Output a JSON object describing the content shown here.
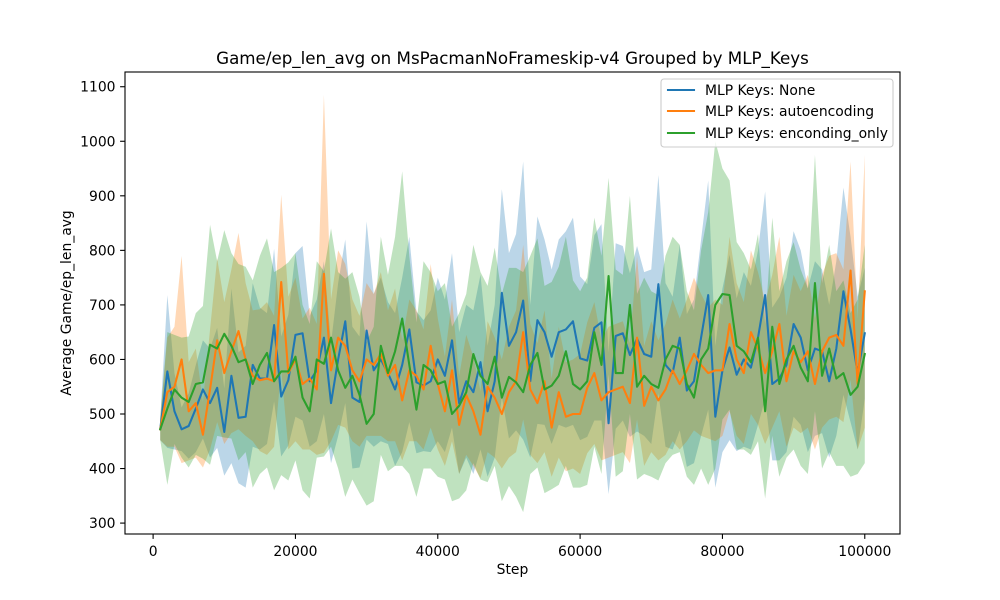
{
  "chart_data": {
    "type": "line",
    "title": "Game/ep_len_avg on MsPacmanNoFrameskip-v4 Grouped by MLP_Keys",
    "xlabel": "Step",
    "ylabel": "Average Game/ep_len_avg",
    "xlim": [
      -3950,
      104950
    ],
    "ylim": [
      280,
      1127
    ],
    "xticks": [
      0,
      20000,
      40000,
      60000,
      80000,
      100000
    ],
    "yticks": [
      300,
      400,
      500,
      600,
      700,
      800,
      900,
      1000,
      1100
    ],
    "grid": false,
    "legend": "upper right",
    "x": [
      1000,
      2000,
      3000,
      4000,
      5000,
      6000,
      7000,
      8000,
      9000,
      10000,
      11000,
      12000,
      13000,
      14000,
      15000,
      16000,
      17000,
      18000,
      19000,
      20000,
      21000,
      22000,
      23000,
      24000,
      25000,
      26000,
      27000,
      28000,
      29000,
      30000,
      31000,
      32000,
      33000,
      34000,
      35000,
      36000,
      37000,
      38000,
      39000,
      40000,
      41000,
      42000,
      43000,
      44000,
      45000,
      46000,
      47000,
      48000,
      49000,
      50000,
      51000,
      52000,
      53000,
      54000,
      55000,
      56000,
      57000,
      58000,
      59000,
      60000,
      61000,
      62000,
      63000,
      64000,
      65000,
      66000,
      67000,
      68000,
      69000,
      70000,
      71000,
      72000,
      73000,
      74000,
      75000,
      76000,
      77000,
      78000,
      79000,
      80000,
      81000,
      82000,
      83000,
      84000,
      85000,
      86000,
      87000,
      88000,
      89000,
      90000,
      91000,
      92000,
      93000,
      94000,
      95000,
      96000,
      97000,
      98000,
      99000,
      100000
    ],
    "series": [
      {
        "name": "MLP Keys: None",
        "color": "#1f77b4",
        "y": [
          472,
          578,
          505,
          472,
          478,
          510,
          545,
          520,
          548,
          467,
          570,
          493,
          495,
          590,
          565,
          565,
          663,
          532,
          562,
          645,
          648,
          560,
          580,
          640,
          520,
          600,
          670,
          530,
          522,
          653,
          580,
          600,
          575,
          545,
          590,
          655,
          558,
          552,
          560,
          600,
          570,
          635,
          520,
          560,
          540,
          595,
          505,
          560,
          722,
          625,
          650,
          708,
          560,
          672,
          650,
          605,
          650,
          655,
          670,
          602,
          598,
          658,
          668,
          483,
          643,
          648,
          608,
          638,
          610,
          605,
          738,
          590,
          575,
          640,
          543,
          560,
          640,
          718,
          495,
          580,
          622,
          572,
          600,
          585,
          640,
          718,
          555,
          565,
          590,
          665,
          640,
          580,
          620,
          615,
          560,
          620,
          725,
          655,
          575,
          648
        ],
        "lower": [
          452,
          438,
          435,
          432,
          418,
          430,
          455,
          420,
          438,
          387,
          410,
          373,
          365,
          440,
          435,
          445,
          523,
          422,
          442,
          495,
          488,
          440,
          450,
          500,
          410,
          460,
          520,
          400,
          402,
          453,
          440,
          450,
          445,
          405,
          430,
          485,
          428,
          432,
          430,
          450,
          430,
          475,
          390,
          420,
          390,
          435,
          385,
          420,
          532,
          455,
          470,
          453,
          420,
          482,
          480,
          445,
          480,
          475,
          480,
          452,
          458,
          488,
          488,
          353,
          473,
          488,
          458,
          468,
          460,
          445,
          538,
          440,
          435,
          470,
          403,
          410,
          460,
          508,
          365,
          430,
          452,
          432,
          440,
          435,
          480,
          528,
          415,
          415,
          430,
          495,
          480,
          430,
          460,
          465,
          420,
          460,
          535,
          485,
          435,
          528
        ],
        "upper": [
          492,
          718,
          575,
          512,
          538,
          590,
          635,
          620,
          658,
          547,
          730,
          613,
          625,
          740,
          695,
          685,
          803,
          642,
          682,
          795,
          808,
          680,
          710,
          780,
          630,
          740,
          820,
          660,
          642,
          853,
          720,
          750,
          705,
          685,
          750,
          825,
          688,
          672,
          690,
          750,
          710,
          795,
          650,
          700,
          690,
          755,
          625,
          700,
          912,
          795,
          830,
          963,
          700,
          862,
          820,
          765,
          820,
          835,
          860,
          752,
          738,
          828,
          848,
          613,
          813,
          808,
          758,
          808,
          760,
          765,
          938,
          740,
          715,
          810,
          683,
          710,
          820,
          928,
          625,
          730,
          792,
          712,
          760,
          735,
          800,
          908,
          695,
          715,
          750,
          835,
          800,
          730,
          780,
          765,
          700,
          780,
          915,
          825,
          715,
          768
        ]
      },
      {
        "name": "MLP Keys: autoencoding",
        "color": "#ff7f0e",
        "y": [
          472,
          540,
          550,
          600,
          505,
          520,
          462,
          545,
          635,
          575,
          615,
          652,
          600,
          570,
          562,
          565,
          560,
          742,
          575,
          600,
          555,
          565,
          545,
          757,
          580,
          640,
          625,
          580,
          560,
          600,
          590,
          610,
          570,
          590,
          525,
          580,
          570,
          545,
          625,
          555,
          505,
          580,
          480,
          535,
          505,
          462,
          550,
          530,
          500,
          540,
          560,
          650,
          545,
          520,
          560,
          475,
          540,
          495,
          500,
          500,
          548,
          575,
          525,
          540,
          545,
          550,
          520,
          640,
          515,
          550,
          525,
          545,
          580,
          555,
          580,
          610,
          590,
          575,
          580,
          580,
          665,
          600,
          575,
          650,
          620,
          575,
          615,
          665,
          560,
          615,
          595,
          615,
          555,
          615,
          640,
          645,
          625,
          763,
          555,
          725
        ],
        "lower": [
          452,
          440,
          440,
          410,
          415,
          420,
          402,
          435,
          485,
          445,
          465,
          472,
          460,
          450,
          432,
          425,
          440,
          582,
          435,
          450,
          435,
          435,
          425,
          429,
          450,
          480,
          475,
          450,
          440,
          460,
          460,
          460,
          450,
          450,
          415,
          450,
          450,
          435,
          475,
          435,
          405,
          450,
          390,
          425,
          405,
          382,
          430,
          420,
          400,
          420,
          430,
          490,
          425,
          410,
          430,
          385,
          420,
          395,
          400,
          390,
          428,
          445,
          415,
          420,
          425,
          430,
          410,
          490,
          405,
          430,
          415,
          425,
          450,
          435,
          450,
          470,
          460,
          455,
          450,
          460,
          505,
          460,
          445,
          500,
          480,
          445,
          475,
          505,
          440,
          475,
          465,
          475,
          435,
          475,
          490,
          495,
          485,
          563,
          435,
          475
        ],
        "upper": [
          492,
          640,
          660,
          790,
          595,
          620,
          522,
          655,
          785,
          705,
          765,
          832,
          740,
          690,
          692,
          705,
          680,
          902,
          715,
          750,
          675,
          695,
          665,
          1085,
          710,
          800,
          775,
          710,
          680,
          740,
          720,
          760,
          690,
          730,
          635,
          710,
          690,
          655,
          775,
          675,
          605,
          710,
          570,
          645,
          605,
          542,
          670,
          640,
          600,
          660,
          690,
          810,
          665,
          630,
          690,
          565,
          660,
          595,
          600,
          610,
          668,
          705,
          635,
          660,
          665,
          670,
          630,
          790,
          625,
          670,
          635,
          665,
          710,
          675,
          710,
          750,
          720,
          695,
          710,
          700,
          825,
          740,
          705,
          800,
          760,
          705,
          755,
          825,
          680,
          755,
          725,
          755,
          675,
          755,
          790,
          795,
          765,
          963,
          675,
          975
        ]
      },
      {
        "name": "MLP Keys: enconding_only",
        "color": "#2ca02c",
        "y": [
          472,
          510,
          545,
          530,
          522,
          555,
          558,
          627,
          620,
          647,
          625,
          595,
          600,
          555,
          590,
          612,
          560,
          578,
          578,
          605,
          530,
          505,
          600,
          592,
          640,
          580,
          548,
          570,
          535,
          482,
          500,
          625,
          575,
          615,
          675,
          590,
          508,
          590,
          580,
          555,
          560,
          500,
          515,
          540,
          610,
          570,
          555,
          605,
          530,
          568,
          558,
          540,
          590,
          612,
          545,
          552,
          570,
          615,
          555,
          545,
          560,
          650,
          590,
          753,
          575,
          575,
          700,
          550,
          570,
          555,
          548,
          600,
          625,
          620,
          555,
          530,
          600,
          620,
          700,
          720,
          718,
          625,
          615,
          595,
          640,
          505,
          660,
          555,
          600,
          625,
          585,
          560,
          740,
          570,
          620,
          565,
          575,
          535,
          550,
          610
        ],
        "lower": [
          452,
          370,
          445,
          420,
          402,
          425,
          418,
          407,
          460,
          457,
          455,
          415,
          430,
          365,
          390,
          402,
          360,
          388,
          378,
          415,
          360,
          345,
          420,
          422,
          440,
          400,
          348,
          380,
          355,
          332,
          340,
          425,
          395,
          405,
          405,
          390,
          348,
          400,
          400,
          385,
          380,
          340,
          345,
          360,
          410,
          380,
          375,
          405,
          340,
          368,
          348,
          320,
          390,
          402,
          355,
          362,
          370,
          405,
          365,
          365,
          370,
          440,
          390,
          573,
          385,
          395,
          500,
          380,
          390,
          385,
          378,
          410,
          425,
          430,
          385,
          370,
          400,
          370,
          400,
          490,
          508,
          435,
          435,
          425,
          450,
          345,
          460,
          385,
          420,
          435,
          405,
          390,
          505,
          400,
          430,
          405,
          405,
          385,
          390,
          410
        ],
        "upper": [
          492,
          650,
          645,
          640,
          642,
          685,
          698,
          847,
          780,
          837,
          795,
          775,
          770,
          745,
          790,
          822,
          760,
          768,
          778,
          795,
          700,
          665,
          780,
          762,
          840,
          760,
          748,
          760,
          715,
          632,
          660,
          825,
          755,
          825,
          945,
          790,
          668,
          780,
          760,
          725,
          740,
          660,
          685,
          720,
          810,
          760,
          735,
          805,
          720,
          768,
          768,
          760,
          790,
          822,
          735,
          742,
          770,
          825,
          745,
          725,
          750,
          860,
          790,
          933,
          765,
          755,
          900,
          720,
          750,
          725,
          718,
          790,
          825,
          810,
          725,
          690,
          800,
          870,
          1000,
          950,
          928,
          815,
          795,
          765,
          830,
          665,
          860,
          725,
          780,
          815,
          765,
          730,
          975,
          740,
          810,
          725,
          745,
          685,
          710,
          810
        ]
      }
    ]
  }
}
